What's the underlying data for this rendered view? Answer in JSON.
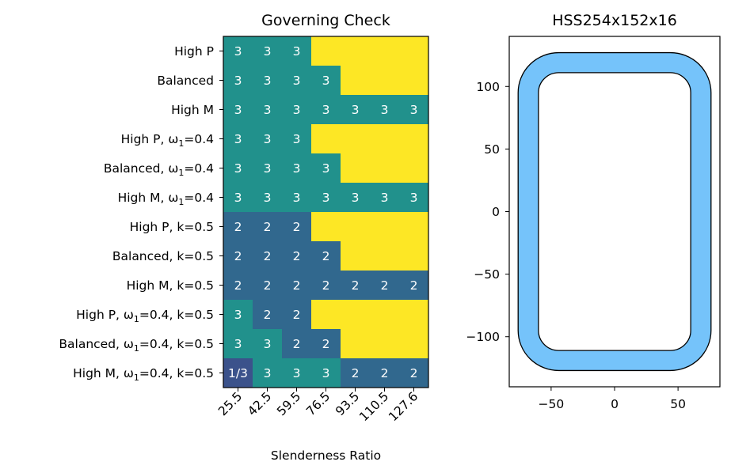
{
  "chart_data": [
    {
      "type": "heatmap",
      "title": "Governing Check",
      "xlabel": "Slenderness Ratio",
      "ylabel": "",
      "x_categories": [
        "25.5",
        "42.5",
        "59.5",
        "76.5",
        "93.5",
        "110.5",
        "127.6"
      ],
      "y_categories": [
        {
          "main": "High P",
          "sub": "",
          "tail": ""
        },
        {
          "main": "Balanced",
          "sub": "",
          "tail": ""
        },
        {
          "main": "High M",
          "sub": "",
          "tail": ""
        },
        {
          "main": "High P, ω",
          "sub": "1",
          "tail": "=0.4"
        },
        {
          "main": "Balanced, ω",
          "sub": "1",
          "tail": "=0.4"
        },
        {
          "main": "High M, ω",
          "sub": "1",
          "tail": "=0.4"
        },
        {
          "main": "High P, k=0.5",
          "sub": "",
          "tail": ""
        },
        {
          "main": "Balanced, k=0.5",
          "sub": "",
          "tail": ""
        },
        {
          "main": "High M, k=0.5",
          "sub": "",
          "tail": ""
        },
        {
          "main": "High P, ω",
          "sub": "1",
          "tail": "=0.4, k=0.5"
        },
        {
          "main": "Balanced, ω",
          "sub": "1",
          "tail": "=0.4, k=0.5"
        },
        {
          "main": "High M, ω",
          "sub": "1",
          "tail": "=0.4, k=0.5"
        }
      ],
      "cells": [
        [
          "3",
          "3",
          "3",
          "",
          "",
          "",
          ""
        ],
        [
          "3",
          "3",
          "3",
          "3",
          "",
          "",
          ""
        ],
        [
          "3",
          "3",
          "3",
          "3",
          "3",
          "3",
          "3"
        ],
        [
          "3",
          "3",
          "3",
          "",
          "",
          "",
          ""
        ],
        [
          "3",
          "3",
          "3",
          "3",
          "",
          "",
          ""
        ],
        [
          "3",
          "3",
          "3",
          "3",
          "3",
          "3",
          "3"
        ],
        [
          "2",
          "2",
          "2",
          "",
          "",
          "",
          ""
        ],
        [
          "2",
          "2",
          "2",
          "2",
          "",
          "",
          ""
        ],
        [
          "2",
          "2",
          "2",
          "2",
          "2",
          "2",
          "2"
        ],
        [
          "3",
          "2",
          "2",
          "",
          "",
          "",
          ""
        ],
        [
          "3",
          "3",
          "2",
          "2",
          "",
          "",
          ""
        ],
        [
          "1/3",
          "3",
          "3",
          "3",
          "2",
          "2",
          "2"
        ]
      ],
      "color_map": {
        "3": "#21918c",
        "2": "#31688e",
        "1/3": "#3b528b",
        "": "#fde725"
      },
      "x_tick_rotation_deg": 45
    },
    {
      "type": "diagram",
      "title": "HSS254x152x16",
      "section": {
        "outer_width": 152,
        "outer_depth": 254,
        "wall_thickness": 16,
        "outer_corner_radius": 32,
        "inner_corner_radius": 16
      },
      "xlim": [
        -83,
        83
      ],
      "ylim": [
        -140,
        140
      ],
      "x_ticks": [
        -50,
        0,
        50
      ],
      "y_ticks": [
        100,
        50,
        0,
        -50,
        -100
      ],
      "fill_color": "#75c3fa",
      "edge_color": "#000000"
    }
  ]
}
